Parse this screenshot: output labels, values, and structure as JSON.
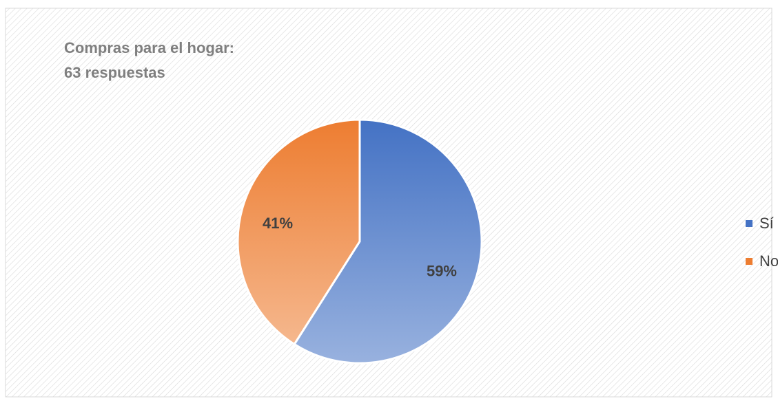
{
  "chart_data": {
    "type": "pie",
    "title": "Compras para el hogar:",
    "subtitle": "63 respuestas",
    "categories": [
      "Sí",
      "No"
    ],
    "values": [
      59,
      41
    ],
    "value_labels": [
      "59%",
      "41%"
    ],
    "colors": [
      "#4472c4",
      "#ed7d31"
    ],
    "legend": "right"
  }
}
